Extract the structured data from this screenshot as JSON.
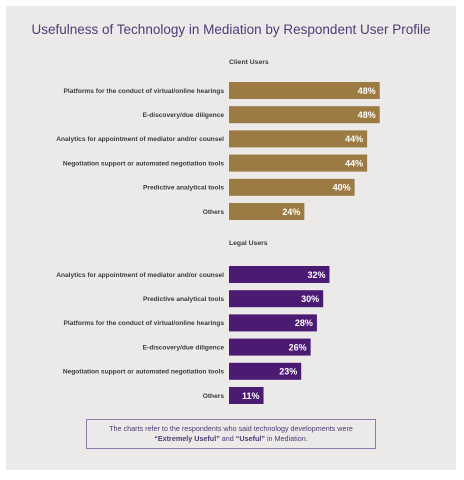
{
  "title": "Usefulness of Technology in Mediation by Respondent User Profile",
  "note": {
    "line1": "The charts refer to the respondents who said technology developments were",
    "strong1": "“Extremely Useful”",
    "and": " and ",
    "strong2": "“Useful”",
    "tail": " in Mediation."
  },
  "chart_data": [
    {
      "type": "bar",
      "orientation": "horizontal",
      "subtitle": "Client Users",
      "color": "#9b7a44",
      "categories": [
        "Platforms for the conduct of virtual/online hearings",
        "E-discovery/due diligence",
        "Analytics for appointment of mediator and/or counsel",
        "Negotiation support or automated negotiation tools",
        "Predictive analytical tools",
        "Others"
      ],
      "values": [
        48,
        48,
        44,
        44,
        40,
        24
      ],
      "labels": [
        "48%",
        "48%",
        "44%",
        "44%",
        "40%",
        "24%"
      ],
      "unit": "%"
    },
    {
      "type": "bar",
      "orientation": "horizontal",
      "subtitle": "Legal Users",
      "color": "#4b1a73",
      "categories": [
        "Analytics for appointment of mediator and/or counsel",
        "Predictive analytical tools",
        "Platforms for the conduct of virtual/online hearings",
        "E-discovery/due diligence",
        "Negotiation support or automated negotiation tools",
        "Others"
      ],
      "values": [
        32,
        30,
        28,
        26,
        23,
        11
      ],
      "labels": [
        "32%",
        "30%",
        "28%",
        "26%",
        "23%",
        "11%"
      ],
      "unit": "%"
    }
  ]
}
